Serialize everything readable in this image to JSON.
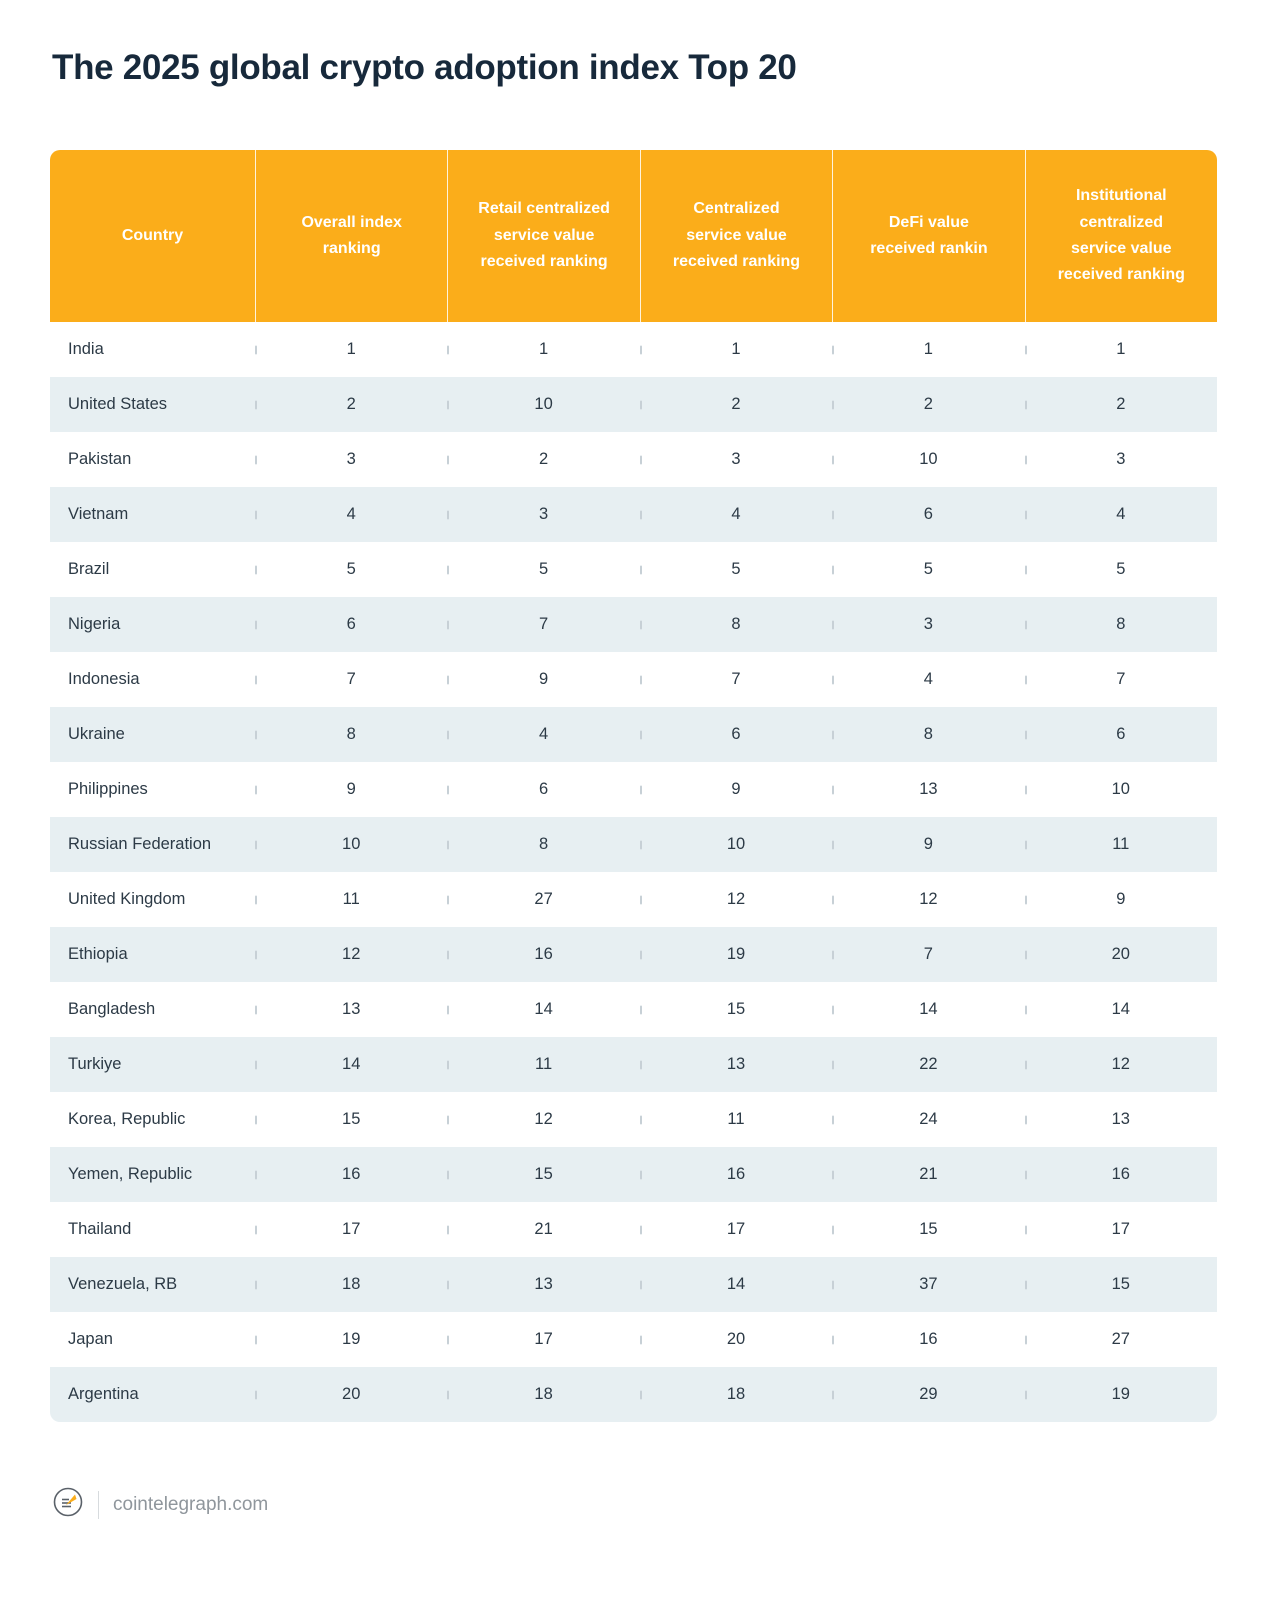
{
  "title": "The 2025 global crypto adoption index Top 20",
  "footer": {
    "brand": "cointelegraph.com"
  },
  "colors": {
    "header_bg": "#fbad1a",
    "alt_row": "#e7eff2",
    "title_text": "#17293b",
    "body_text": "#2c3a46",
    "footer_text": "#8f969c"
  },
  "chart_data": {
    "type": "table",
    "title": "The 2025 global crypto adoption index Top 20",
    "columns": [
      "Country",
      "Overall index ranking",
      "Retail centralized service value received ranking",
      "Centralized service value received ranking",
      "DeFi value received rankin",
      "Institutional centralized service value received ranking"
    ],
    "rows": [
      [
        "India",
        1,
        1,
        1,
        1,
        1
      ],
      [
        "United States",
        2,
        10,
        2,
        2,
        2
      ],
      [
        "Pakistan",
        3,
        2,
        3,
        10,
        3
      ],
      [
        "Vietnam",
        4,
        3,
        4,
        6,
        4
      ],
      [
        "Brazil",
        5,
        5,
        5,
        5,
        5
      ],
      [
        "Nigeria",
        6,
        7,
        8,
        3,
        8
      ],
      [
        "Indonesia",
        7,
        9,
        7,
        4,
        7
      ],
      [
        "Ukraine",
        8,
        4,
        6,
        8,
        6
      ],
      [
        "Philippines",
        9,
        6,
        9,
        13,
        10
      ],
      [
        "Russian Federation",
        10,
        8,
        10,
        9,
        11
      ],
      [
        "United Kingdom",
        11,
        27,
        12,
        12,
        9
      ],
      [
        "Ethiopia",
        12,
        16,
        19,
        7,
        20
      ],
      [
        "Bangladesh",
        13,
        14,
        15,
        14,
        14
      ],
      [
        "Turkiye",
        14,
        11,
        13,
        22,
        12
      ],
      [
        "Korea, Republic",
        15,
        12,
        11,
        24,
        13
      ],
      [
        "Yemen, Republic",
        16,
        15,
        16,
        21,
        16
      ],
      [
        "Thailand",
        17,
        21,
        17,
        15,
        17
      ],
      [
        "Venezuela, RB",
        18,
        13,
        14,
        37,
        15
      ],
      [
        "Japan",
        19,
        17,
        20,
        16,
        27
      ],
      [
        "Argentina",
        20,
        18,
        18,
        29,
        19
      ]
    ]
  }
}
